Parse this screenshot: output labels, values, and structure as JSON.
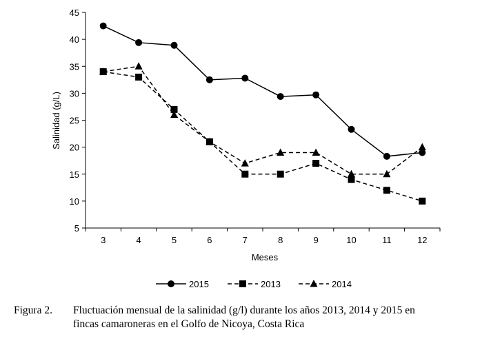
{
  "chart_data": {
    "type": "line",
    "ylabel": "Salinidad (g/L)",
    "xlabel": "Meses",
    "x": [
      3,
      4,
      5,
      6,
      7,
      8,
      9,
      10,
      11,
      12
    ],
    "ylim": [
      5,
      45
    ],
    "yticks": [
      5,
      10,
      15,
      20,
      25,
      30,
      35,
      40,
      45
    ],
    "grid": false,
    "legend_position": "bottom",
    "series": [
      {
        "name": "2015",
        "marker": "circle",
        "dash": "solid",
        "values": [
          42.5,
          39.4,
          38.9,
          32.5,
          32.8,
          29.4,
          29.7,
          23.3,
          18.3,
          19.0
        ]
      },
      {
        "name": "2013",
        "marker": "square",
        "dash": "dashed",
        "values": [
          34.0,
          33.0,
          27.0,
          21.0,
          15.0,
          15.0,
          17.0,
          14.0,
          12.0,
          10.0
        ]
      },
      {
        "name": "2014",
        "marker": "triangle",
        "dash": "dashed",
        "values": [
          34.0,
          35.0,
          26.0,
          21.0,
          17.0,
          19.0,
          19.0,
          15.0,
          15.0,
          20.0
        ]
      }
    ]
  },
  "caption": {
    "label": "Figura 2.",
    "line1": "Fluctuación mensual de la salinidad (g/l) durante los años 2013, 2014 y 2015 en",
    "line2": "fincas camaroneras en el Golfo de Nicoya, Costa Rica"
  }
}
